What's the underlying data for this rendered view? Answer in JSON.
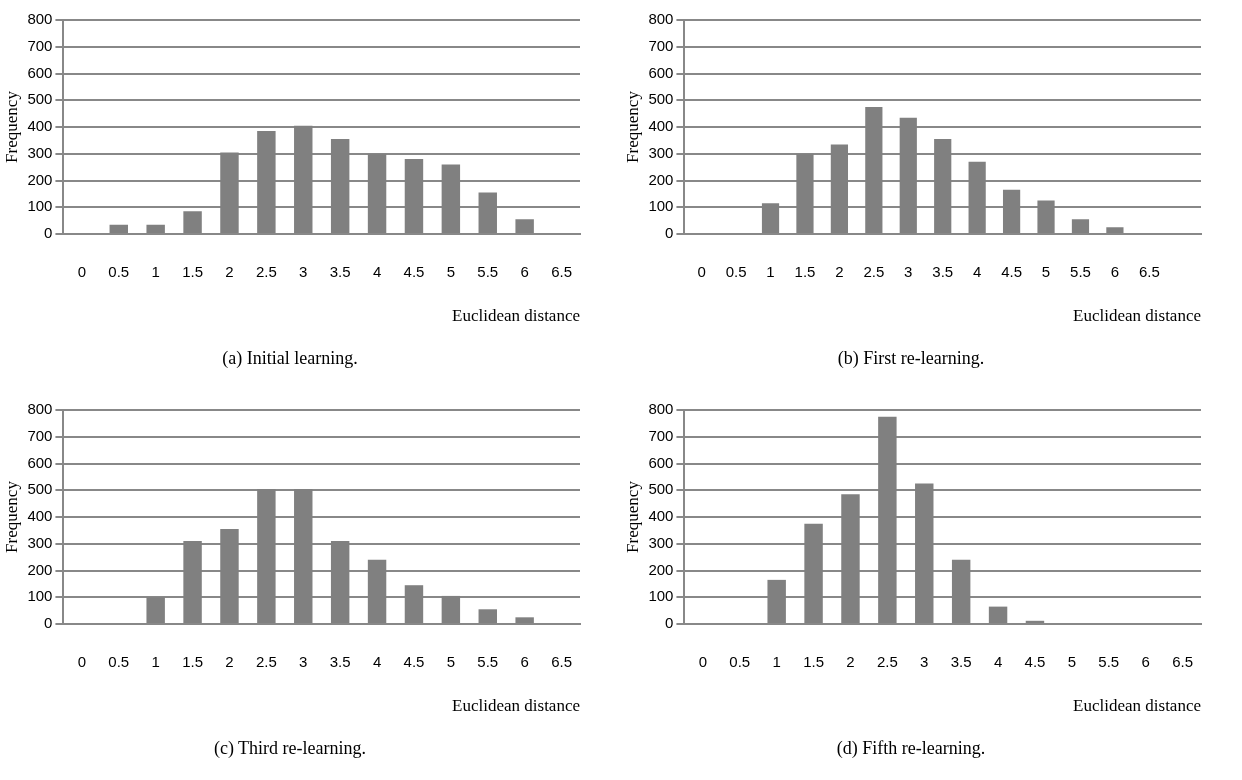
{
  "chart_data": [
    {
      "type": "bar",
      "title": "(a) Initial learning.",
      "xlabel": "Euclidean distance",
      "ylabel": "Frequency",
      "categories": [
        "0",
        "0.5",
        "1",
        "1.5",
        "2",
        "2.5",
        "3",
        "3.5",
        "4",
        "4.5",
        "5",
        "5.5",
        "6",
        "6.5"
      ],
      "values": [
        0,
        35,
        35,
        85,
        305,
        385,
        405,
        355,
        300,
        280,
        260,
        155,
        55,
        0
      ],
      "color": "#808080",
      "ylim": [
        0,
        800
      ],
      "yticks": [
        0,
        100,
        200,
        300,
        400,
        500,
        600,
        700,
        800
      ],
      "grid": "y",
      "legend": false
    },
    {
      "type": "bar",
      "title": "(b) First re-learning.",
      "xlabel": "Euclidean distance",
      "ylabel": "Frequency",
      "categories": [
        "0",
        "0.5",
        "1",
        "1.5",
        "2",
        "2.5",
        "3",
        "3.5",
        "4",
        "4.5",
        "5",
        "5.5",
        "6",
        "6.5",
        null
      ],
      "values": [
        0,
        0,
        115,
        300,
        335,
        475,
        435,
        355,
        270,
        165,
        125,
        55,
        25,
        0,
        0
      ],
      "color": "#808080",
      "ylim": [
        0,
        800
      ],
      "yticks": [
        0,
        100,
        200,
        300,
        400,
        500,
        600,
        700,
        800
      ],
      "grid": "y",
      "legend": false
    },
    {
      "type": "bar",
      "title": "(c) Third re-learning.",
      "xlabel": "Euclidean distance",
      "ylabel": "Frequency",
      "categories": [
        "0",
        "0.5",
        "1",
        "1.5",
        "2",
        "2.5",
        "3",
        "3.5",
        "4",
        "4.5",
        "5",
        "5.5",
        "6",
        "6.5"
      ],
      "values": [
        0,
        0,
        100,
        310,
        355,
        505,
        505,
        310,
        240,
        145,
        105,
        55,
        25,
        0
      ],
      "color": "#808080",
      "ylim": [
        0,
        800
      ],
      "yticks": [
        0,
        100,
        200,
        300,
        400,
        500,
        600,
        700,
        800
      ],
      "grid": "y",
      "legend": false
    },
    {
      "type": "bar",
      "title": "(d) Fifth re-learning.",
      "xlabel": "Euclidean distance",
      "ylabel": "Frequency",
      "categories": [
        "0",
        "0.5",
        "1",
        "1.5",
        "2",
        "2.5",
        "3",
        "3.5",
        "4",
        "4.5",
        "5",
        "5.5",
        "6",
        "6.5"
      ],
      "values": [
        0,
        0,
        165,
        375,
        485,
        775,
        525,
        240,
        65,
        12,
        0,
        0,
        0,
        0
      ],
      "color": "#808080",
      "ylim": [
        0,
        800
      ],
      "yticks": [
        0,
        100,
        200,
        300,
        400,
        500,
        600,
        700,
        800
      ],
      "grid": "y",
      "legend": false
    }
  ]
}
